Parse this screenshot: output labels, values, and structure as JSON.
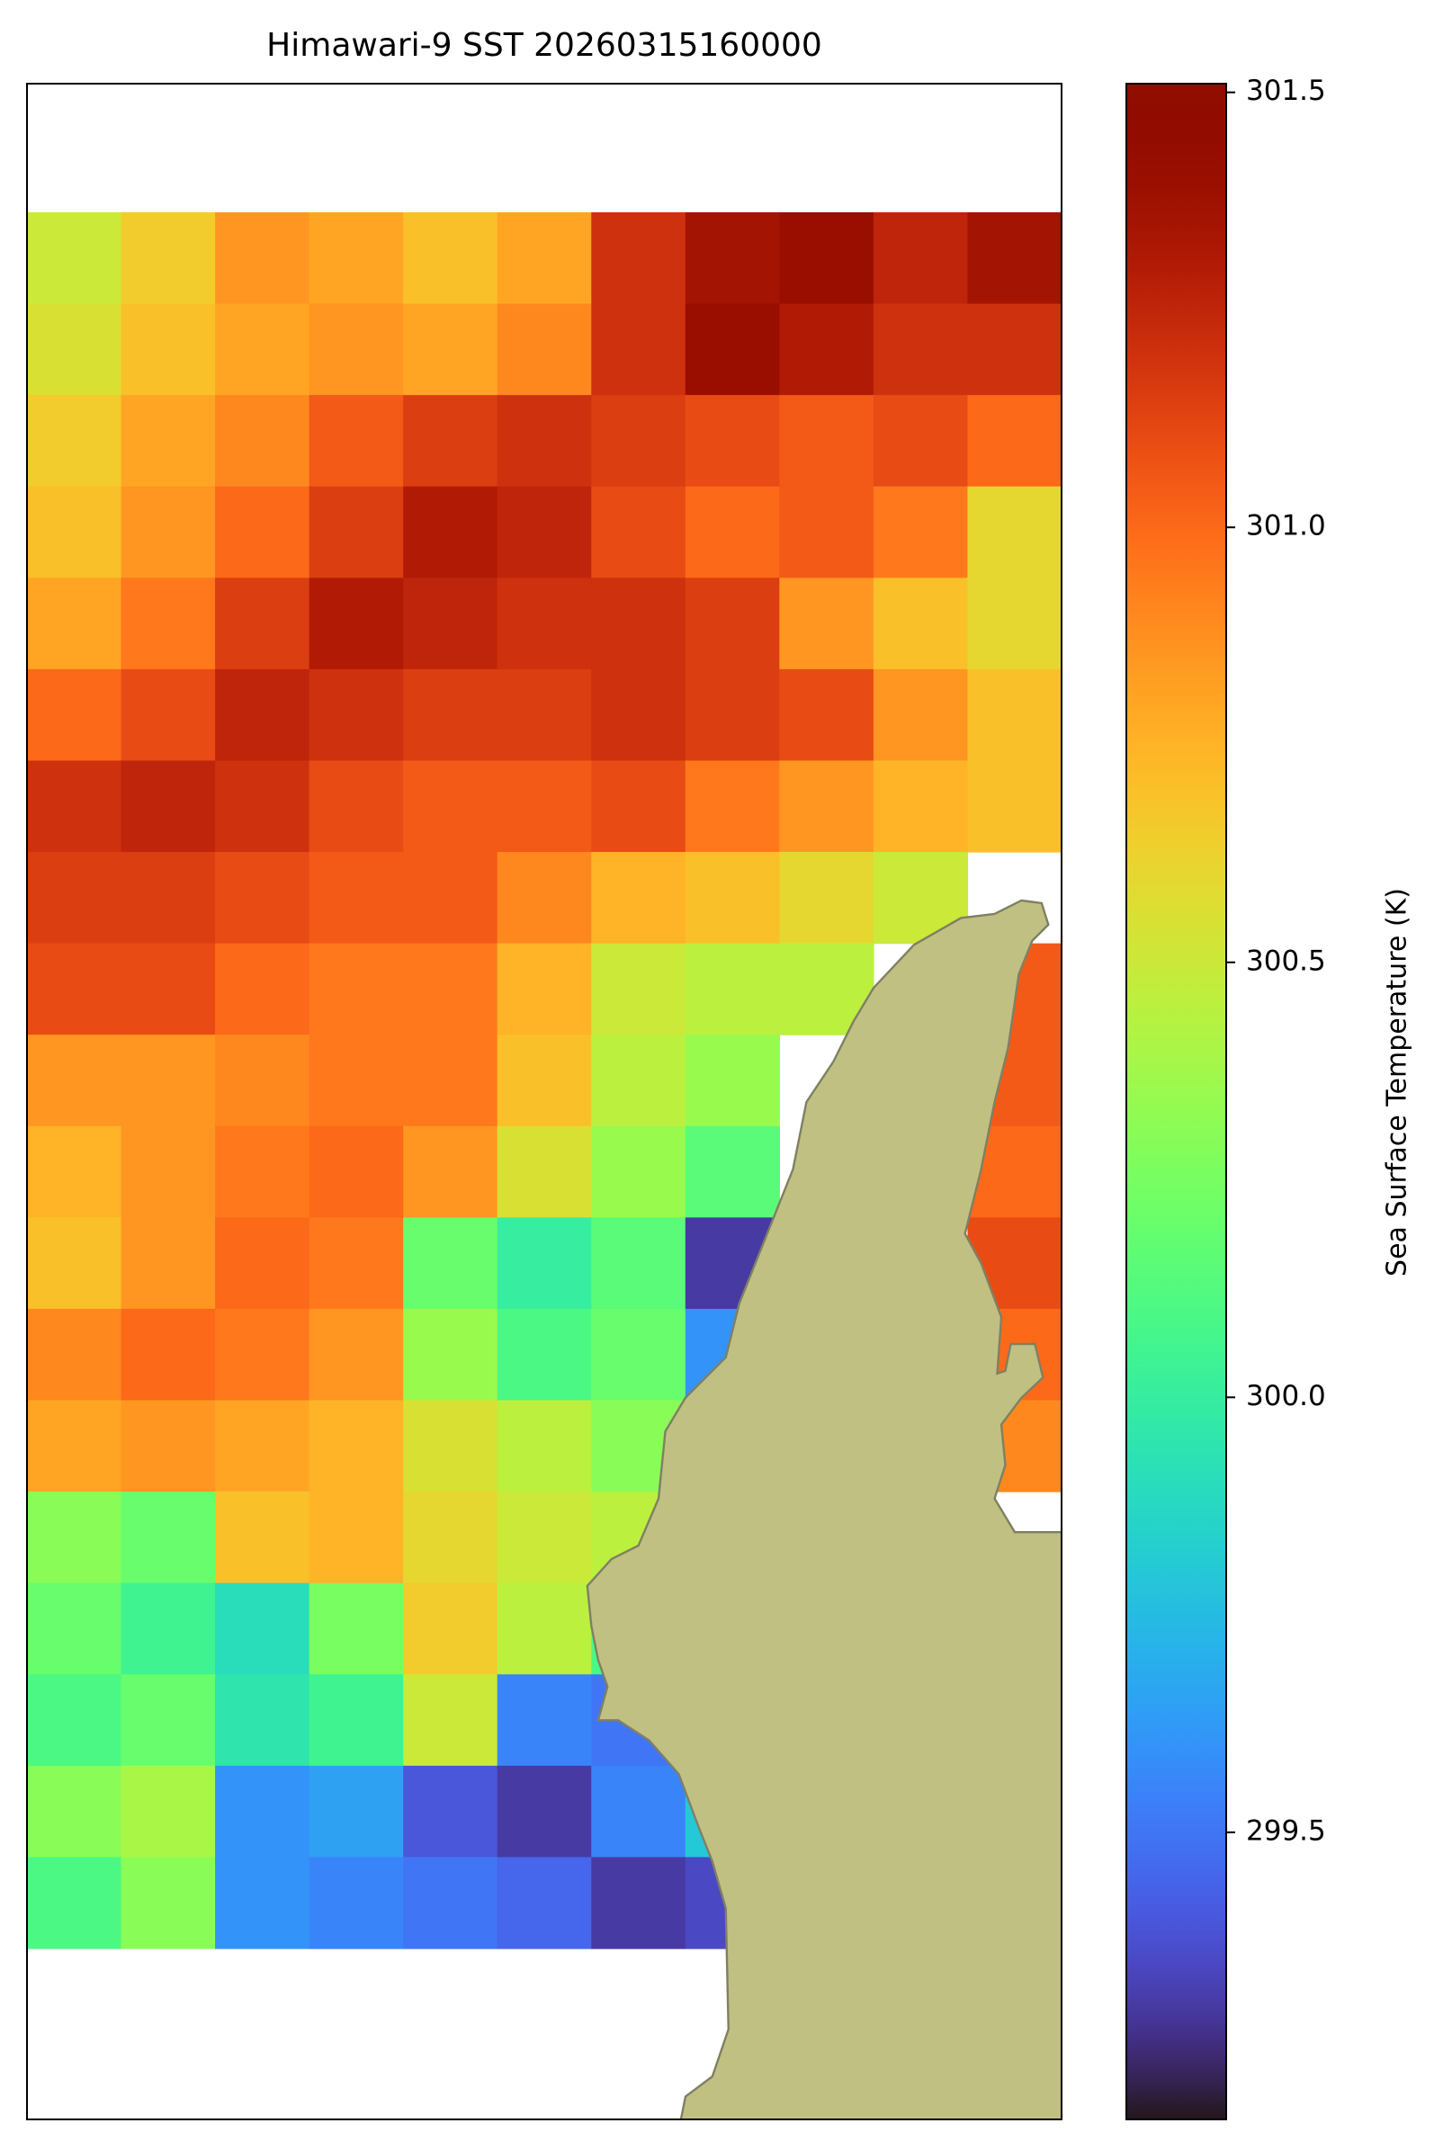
{
  "chart_data": {
    "type": "heatmap",
    "title": "Himawari-9 SST 20260315160000",
    "colormap": "turbo",
    "colorbar": {
      "label": "Sea Surface Temperature (K)",
      "lim": [
        299.17,
        301.51
      ],
      "ticks": [
        301.5,
        {
          "value": 301,
          "label": "301.0"
        },
        300.5,
        {
          "value": 300,
          "label": "300.0"
        },
        299.5
      ]
    },
    "values": [
      [
        300.5,
        300.65,
        300.85,
        300.8,
        300.7,
        300.8,
        301.2,
        301.35,
        301.4,
        301.25,
        301.35
      ],
      [
        300.55,
        300.7,
        300.8,
        300.85,
        300.8,
        300.9,
        301.2,
        301.4,
        301.3,
        301.2,
        301.2
      ],
      [
        300.65,
        300.8,
        300.9,
        301.05,
        301.15,
        301.2,
        301.15,
        301.1,
        301.05,
        301.1,
        301.0
      ],
      [
        300.7,
        300.85,
        301.0,
        301.15,
        301.3,
        301.25,
        301.1,
        301.0,
        301.05,
        300.95,
        300.6
      ],
      [
        300.8,
        300.95,
        301.15,
        301.3,
        301.25,
        301.2,
        301.2,
        301.15,
        300.85,
        300.7,
        300.6
      ],
      [
        301.0,
        301.1,
        301.25,
        301.2,
        301.15,
        301.15,
        301.2,
        301.15,
        301.1,
        300.85,
        300.7
      ],
      [
        301.2,
        301.25,
        301.2,
        301.1,
        301.05,
        301.05,
        301.1,
        300.95,
        300.85,
        300.75,
        300.7
      ],
      [
        301.15,
        301.15,
        301.1,
        301.05,
        301.05,
        300.9,
        300.75,
        300.7,
        300.6,
        300.5,
        null
      ],
      [
        301.1,
        301.1,
        301.0,
        300.95,
        300.95,
        300.75,
        300.5,
        300.45,
        300.45,
        null,
        301.05
      ],
      [
        300.85,
        300.85,
        300.9,
        300.95,
        300.95,
        300.7,
        300.45,
        300.35,
        null,
        null,
        301.05
      ],
      [
        300.75,
        300.85,
        300.95,
        301.0,
        300.85,
        300.55,
        300.35,
        300.15,
        null,
        null,
        301.0
      ],
      [
        300.7,
        300.85,
        301.0,
        300.95,
        300.2,
        300.0,
        300.15,
        299.3,
        null,
        null,
        301.1
      ],
      [
        300.9,
        301.0,
        300.95,
        300.85,
        300.35,
        300.1,
        300.2,
        299.6,
        null,
        null,
        301.0
      ],
      [
        300.8,
        300.85,
        300.8,
        300.75,
        300.55,
        300.45,
        300.3,
        null,
        null,
        null,
        300.9
      ],
      [
        300.3,
        300.2,
        300.7,
        300.75,
        300.6,
        300.5,
        300.45,
        null,
        null,
        null,
        null
      ],
      [
        300.2,
        300.05,
        299.9,
        300.25,
        300.65,
        300.45,
        300.1,
        null,
        null,
        null,
        null
      ],
      [
        300.1,
        300.2,
        299.95,
        300.05,
        300.5,
        299.55,
        299.5,
        null,
        null,
        null,
        null
      ],
      [
        300.3,
        300.4,
        299.6,
        299.65,
        299.4,
        299.3,
        299.55,
        299.8,
        null,
        null,
        null
      ],
      [
        300.1,
        300.3,
        299.6,
        299.55,
        299.5,
        299.45,
        299.3,
        299.35,
        null,
        null,
        null
      ]
    ]
  }
}
